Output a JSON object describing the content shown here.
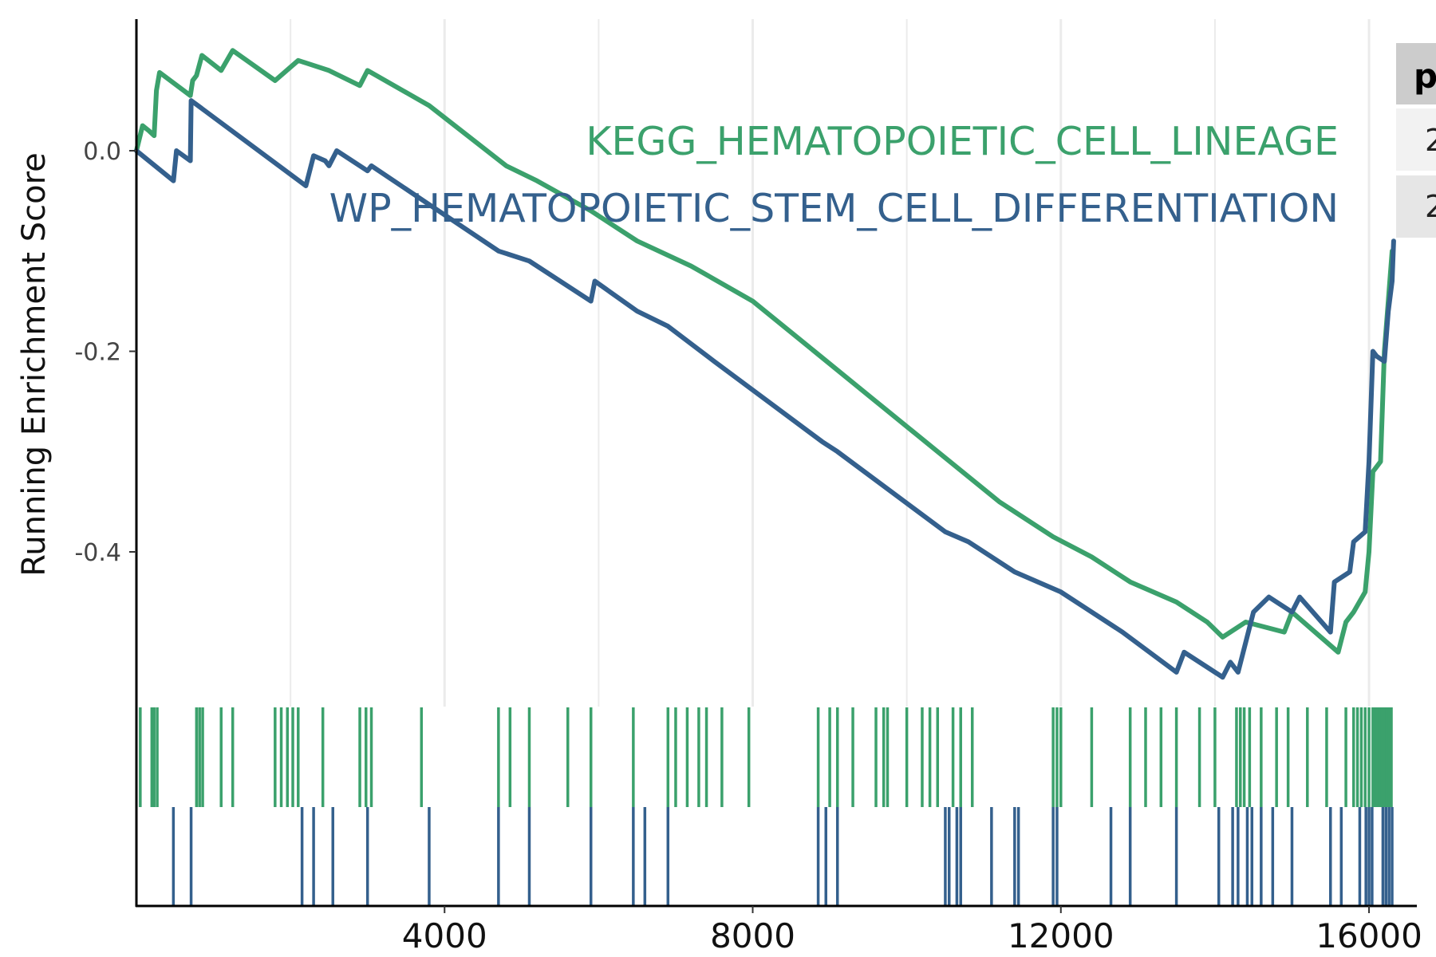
{
  "chart_data": {
    "type": "line",
    "title": "",
    "xlabel": "",
    "ylabel": "Running Enrichment Score",
    "xlim": [
      0,
      16300
    ],
    "ylim": [
      -0.557,
      0.13
    ],
    "x_ticks": [
      4000,
      8000,
      12000,
      16000
    ],
    "x_tick_labels": [
      "4000",
      "8000",
      "12000",
      "16000"
    ],
    "y_ticks": [
      0.0,
      -0.2,
      -0.4
    ],
    "y_tick_labels": [
      "0.0",
      "-0.2",
      "-0.4"
    ],
    "grid": "vertical",
    "series": [
      {
        "name": "KEGG_HEMATOPOIETIC_CELL_LINEAGE",
        "color": "#3BA16C",
        "points": [
          [
            0,
            0.0
          ],
          [
            80,
            0.025
          ],
          [
            160,
            0.02
          ],
          [
            230,
            0.015
          ],
          [
            260,
            0.06
          ],
          [
            300,
            0.078
          ],
          [
            700,
            0.055
          ],
          [
            730,
            0.07
          ],
          [
            780,
            0.075
          ],
          [
            850,
            0.095
          ],
          [
            1100,
            0.08
          ],
          [
            1250,
            0.1
          ],
          [
            1800,
            0.07
          ],
          [
            2100,
            0.09
          ],
          [
            2500,
            0.08
          ],
          [
            2900,
            0.065
          ],
          [
            3000,
            0.08
          ],
          [
            3800,
            0.045
          ],
          [
            4800,
            -0.015
          ],
          [
            5200,
            -0.03
          ],
          [
            5900,
            -0.06
          ],
          [
            6500,
            -0.09
          ],
          [
            7200,
            -0.115
          ],
          [
            8000,
            -0.15
          ],
          [
            8800,
            -0.2
          ],
          [
            9600,
            -0.25
          ],
          [
            10400,
            -0.3
          ],
          [
            11200,
            -0.35
          ],
          [
            11900,
            -0.385
          ],
          [
            12400,
            -0.405
          ],
          [
            12900,
            -0.43
          ],
          [
            13500,
            -0.45
          ],
          [
            13900,
            -0.47
          ],
          [
            14100,
            -0.485
          ],
          [
            14400,
            -0.47
          ],
          [
            14900,
            -0.48
          ],
          [
            15000,
            -0.46
          ],
          [
            15600,
            -0.5
          ],
          [
            15700,
            -0.47
          ],
          [
            15800,
            -0.46
          ],
          [
            15950,
            -0.44
          ],
          [
            16000,
            -0.4
          ],
          [
            16050,
            -0.32
          ],
          [
            16150,
            -0.31
          ],
          [
            16200,
            -0.2
          ],
          [
            16250,
            -0.15
          ],
          [
            16300,
            -0.1
          ]
        ]
      },
      {
        "name": "WP_HEMATOPOIETIC_STEM_CELL_DIFFERENTIATION",
        "color": "#34608D",
        "points": [
          [
            0,
            0.0
          ],
          [
            480,
            -0.03
          ],
          [
            520,
            0.0
          ],
          [
            700,
            -0.01
          ],
          [
            710,
            0.05
          ],
          [
            2200,
            -0.035
          ],
          [
            2300,
            -0.005
          ],
          [
            2450,
            -0.01
          ],
          [
            2500,
            -0.015
          ],
          [
            2600,
            0.0
          ],
          [
            3000,
            -0.02
          ],
          [
            3050,
            -0.015
          ],
          [
            4700,
            -0.1
          ],
          [
            5100,
            -0.11
          ],
          [
            5900,
            -0.15
          ],
          [
            5950,
            -0.13
          ],
          [
            6500,
            -0.16
          ],
          [
            6900,
            -0.175
          ],
          [
            7500,
            -0.21
          ],
          [
            8900,
            -0.29
          ],
          [
            9100,
            -0.3
          ],
          [
            10500,
            -0.38
          ],
          [
            10800,
            -0.39
          ],
          [
            11400,
            -0.42
          ],
          [
            12000,
            -0.44
          ],
          [
            12800,
            -0.48
          ],
          [
            13500,
            -0.52
          ],
          [
            13600,
            -0.5
          ],
          [
            14100,
            -0.525
          ],
          [
            14200,
            -0.51
          ],
          [
            14300,
            -0.52
          ],
          [
            14500,
            -0.46
          ],
          [
            14700,
            -0.445
          ],
          [
            15000,
            -0.46
          ],
          [
            15100,
            -0.445
          ],
          [
            15500,
            -0.48
          ],
          [
            15550,
            -0.43
          ],
          [
            15750,
            -0.42
          ],
          [
            15800,
            -0.39
          ],
          [
            15950,
            -0.38
          ],
          [
            16000,
            -0.31
          ],
          [
            16050,
            -0.2
          ],
          [
            16100,
            -0.205
          ],
          [
            16200,
            -0.21
          ],
          [
            16250,
            -0.16
          ],
          [
            16300,
            -0.13
          ],
          [
            16320,
            -0.09
          ]
        ]
      }
    ],
    "hits": [
      {
        "name": "KEGG_HEMATOPOIETIC_CELL_LINEAGE",
        "color": "#3BA16C",
        "positions": [
          50,
          200,
          230,
          270,
          780,
          820,
          860,
          1100,
          1250,
          1800,
          1880,
          1960,
          2030,
          2100,
          2420,
          2900,
          2980,
          3050,
          3700,
          4700,
          4850,
          5100,
          5600,
          5900,
          6450,
          6900,
          7000,
          7150,
          7300,
          7400,
          7600,
          7950,
          8850,
          9000,
          9100,
          9300,
          9600,
          9700,
          9750,
          10000,
          10200,
          10300,
          10400,
          10600,
          10700,
          10850,
          11900,
          11950,
          12000,
          12400,
          12900,
          13100,
          13300,
          13500,
          13800,
          14000,
          14280,
          14330,
          14380,
          14450,
          14600,
          14800,
          14950,
          15200,
          15450,
          15700,
          15800,
          15850,
          15900,
          15950,
          16000,
          16050,
          16080,
          16110,
          16140,
          16170,
          16200,
          16230,
          16260,
          16290
        ]
      },
      {
        "name": "WP_HEMATOPOIETIC_STEM_CELL_DIFFERENTIATION",
        "color": "#34608D",
        "positions": [
          480,
          710,
          2150,
          2300,
          2550,
          3000,
          3800,
          4700,
          5100,
          5900,
          6450,
          6600,
          6900,
          8850,
          8950,
          9100,
          10500,
          10550,
          10650,
          10700,
          11100,
          11400,
          11450,
          11900,
          11950,
          12650,
          12900,
          13500,
          14050,
          14230,
          14300,
          14420,
          14480,
          14600,
          14750,
          15000,
          15500,
          15640,
          15880,
          15960,
          16000,
          16040,
          16180,
          16220,
          16260,
          16300
        ]
      }
    ],
    "table": {
      "header": "p",
      "cells": [
        "2",
        "2"
      ]
    }
  }
}
